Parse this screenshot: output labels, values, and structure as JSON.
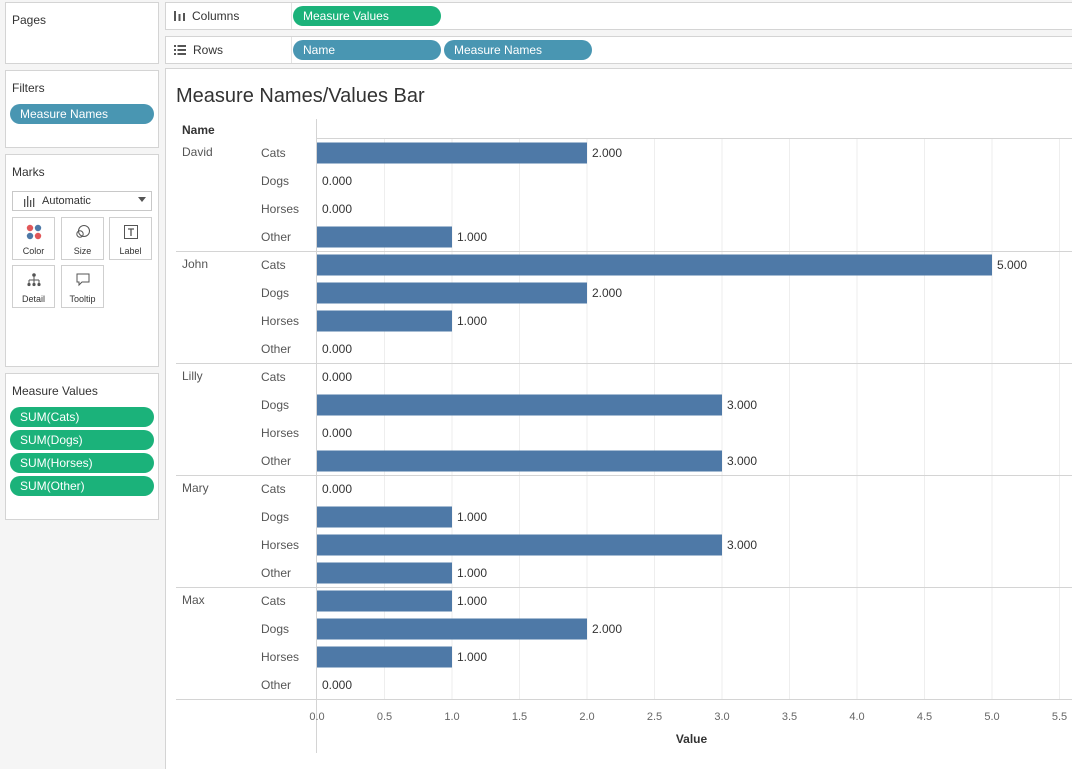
{
  "pages": {
    "title": "Pages"
  },
  "filters": {
    "title": "Filters",
    "pills": [
      "Measure Names"
    ]
  },
  "marks": {
    "title": "Marks",
    "mark_type": "Automatic",
    "buttons": [
      {
        "label": "Color",
        "icon": "color-icon"
      },
      {
        "label": "Size",
        "icon": "size-icon"
      },
      {
        "label": "Label",
        "icon": "label-icon"
      },
      {
        "label": "Detail",
        "icon": "detail-icon"
      },
      {
        "label": "Tooltip",
        "icon": "tooltip-icon"
      }
    ]
  },
  "measure_values": {
    "title": "Measure Values",
    "pills": [
      "SUM(Cats)",
      "SUM(Dogs)",
      "SUM(Horses)",
      "SUM(Other)"
    ]
  },
  "columns_shelf": {
    "label": "Columns",
    "pills": [
      "Measure Values"
    ]
  },
  "rows_shelf": {
    "label": "Rows",
    "pills": [
      "Name",
      "Measure Names"
    ]
  },
  "colors": {
    "bar": "#4e79a7",
    "pill_blue": "#4996b2",
    "pill_green": "#1bb27a"
  },
  "view": {
    "title": "Measure Names/Values Bar"
  },
  "chart_data": {
    "type": "bar",
    "orientation": "horizontal",
    "title": "Measure Names/Values Bar",
    "row_header": "Name",
    "xlabel": "Value",
    "xlim": [
      0,
      5.5
    ],
    "xticks": [
      "0.0",
      "0.5",
      "1.0",
      "1.5",
      "2.0",
      "2.5",
      "3.0",
      "3.5",
      "4.0",
      "4.5",
      "5.0",
      "5.5"
    ],
    "grid": true,
    "measures": [
      "Cats",
      "Dogs",
      "Horses",
      "Other"
    ],
    "groups": [
      {
        "name": "David",
        "values": [
          2,
          0,
          0,
          1
        ],
        "labels": [
          "2.000",
          "0.000",
          "0.000",
          "1.000"
        ]
      },
      {
        "name": "John",
        "values": [
          5,
          2,
          1,
          0
        ],
        "labels": [
          "5.000",
          "2.000",
          "1.000",
          "0.000"
        ]
      },
      {
        "name": "Lilly",
        "values": [
          0,
          3,
          0,
          3
        ],
        "labels": [
          "0.000",
          "3.000",
          "0.000",
          "3.000"
        ]
      },
      {
        "name": "Mary",
        "values": [
          0,
          1,
          3,
          1
        ],
        "labels": [
          "0.000",
          "1.000",
          "3.000",
          "1.000"
        ]
      },
      {
        "name": "Max",
        "values": [
          1,
          2,
          1,
          0
        ],
        "labels": [
          "1.000",
          "2.000",
          "1.000",
          "0.000"
        ]
      }
    ]
  }
}
